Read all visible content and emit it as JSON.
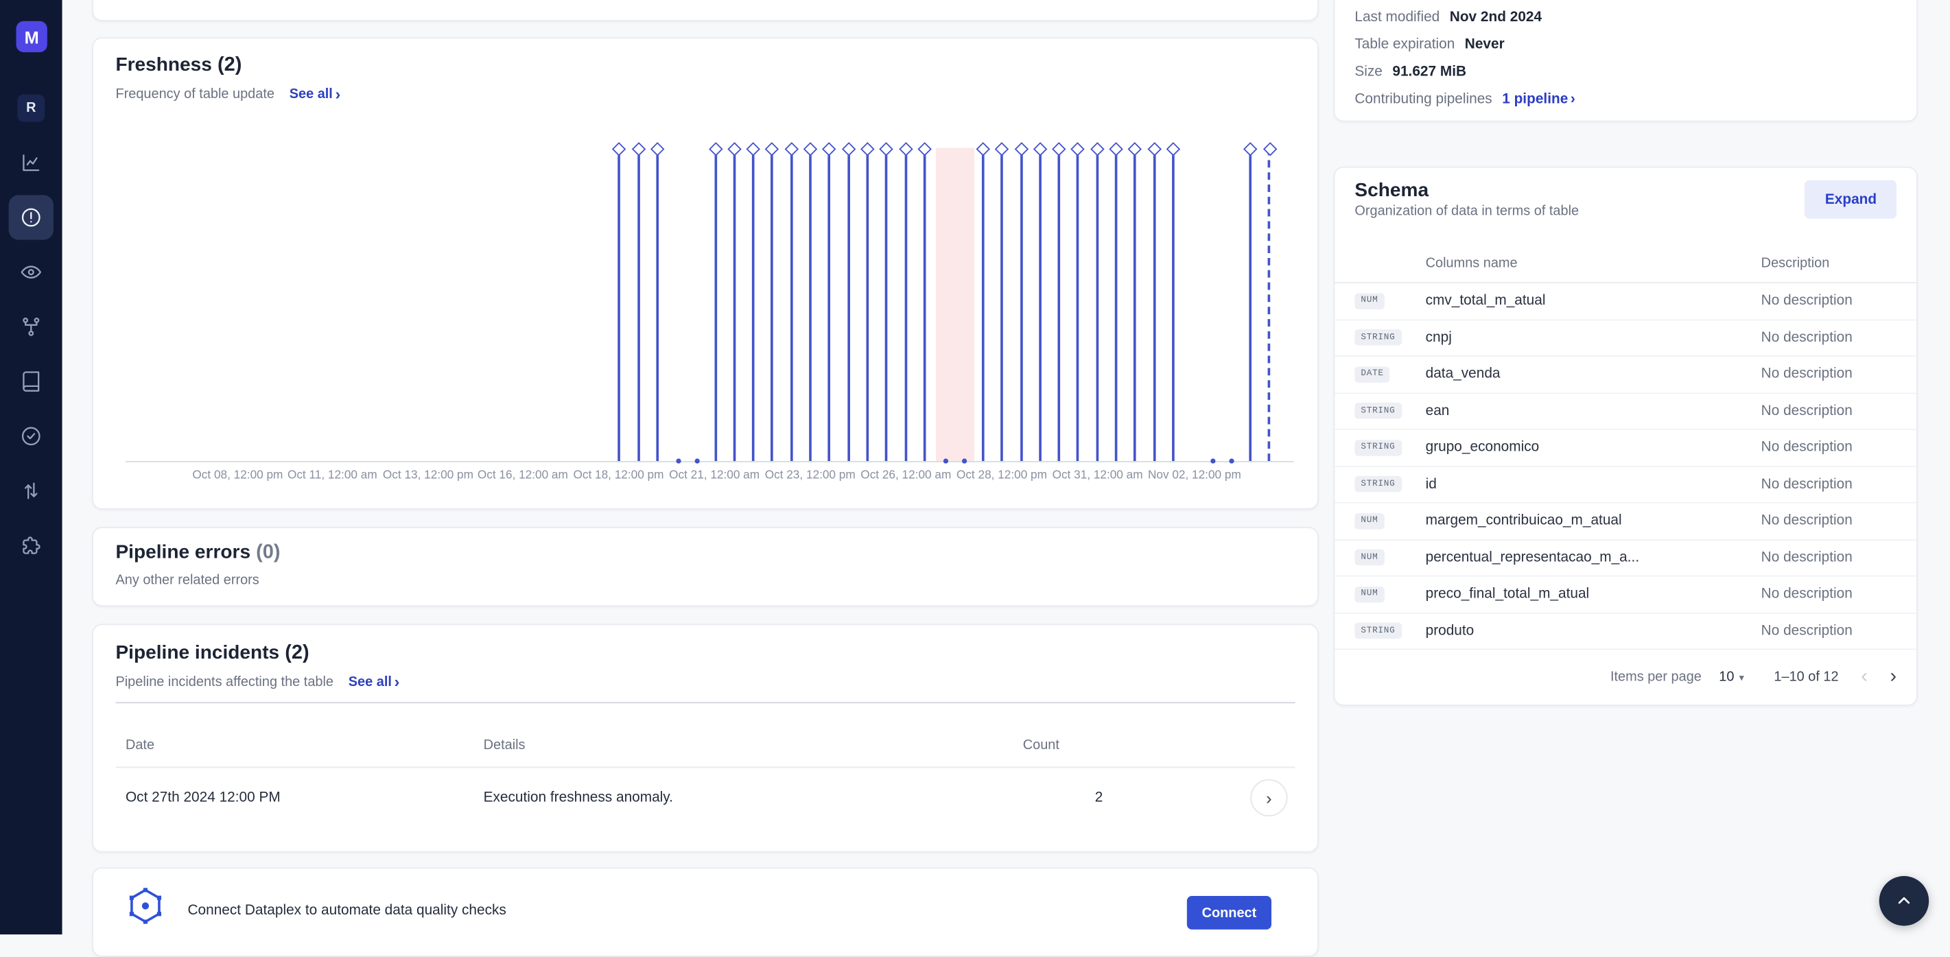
{
  "icons": {
    "chevron_right": "›",
    "chevron_left": "‹",
    "caret_down": "▾"
  },
  "theme": {
    "accent": "#3351d4",
    "link": "#2b3cc0",
    "sidebar_bg": "#0f1833"
  },
  "sidebar": {
    "logo": "M",
    "workspace": "R"
  },
  "freshness_card": {
    "title": "Freshness",
    "count": "(2)",
    "subtitle": "Frequency of table update",
    "see_all": "See all"
  },
  "errors_card": {
    "title": "Pipeline errors",
    "count": "(0)",
    "subtitle": "Any other related errors"
  },
  "incidents_card": {
    "title": "Pipeline incidents",
    "count": "(2)",
    "subtitle": "Pipeline incidents affecting the table",
    "see_all": "See all",
    "columns": [
      "Date",
      "Details",
      "Count"
    ],
    "rows": [
      {
        "date": "Oct 27th 2024 12:00 PM",
        "details": "Execution freshness anomaly.",
        "count": "2"
      }
    ]
  },
  "banner": {
    "text": "Connect Dataplex to automate data quality checks",
    "button": "Connect"
  },
  "info_panel": {
    "rows": [
      {
        "label": "Last modified",
        "value": "Nov 2nd 2024"
      },
      {
        "label": "Table expiration",
        "value": "Never"
      },
      {
        "label": "Size",
        "value": "91.627 MiB"
      },
      {
        "label": "Contributing pipelines",
        "value": "1 pipeline"
      }
    ]
  },
  "schema_card": {
    "title": "Schema",
    "subtitle": "Organization of data in terms of table",
    "expand": "Expand",
    "columns": [
      "Columns name",
      "Description"
    ],
    "rows": [
      {
        "type": "NUM",
        "name": "cmv_total_m_atual",
        "description": "No description"
      },
      {
        "type": "STRING",
        "name": "cnpj",
        "description": "No description"
      },
      {
        "type": "DATE",
        "name": "data_venda",
        "description": "No description"
      },
      {
        "type": "STRING",
        "name": "ean",
        "description": "No description"
      },
      {
        "type": "STRING",
        "name": "grupo_economico",
        "description": "No description"
      },
      {
        "type": "STRING",
        "name": "id",
        "description": "No description"
      },
      {
        "type": "NUM",
        "name": "margem_contribuicao_m_atual",
        "description": "No description"
      },
      {
        "type": "NUM",
        "name": "percentual_representacao_m_a...",
        "description": "No description"
      },
      {
        "type": "NUM",
        "name": "preco_final_total_m_atual",
        "description": "No description"
      },
      {
        "type": "STRING",
        "name": "produto",
        "description": "No description"
      }
    ],
    "pagination": {
      "items_per_page_label": "Items per page",
      "items_per_page": "10",
      "range": "1–10 of 12"
    }
  },
  "chart_data": {
    "type": "event-timeline",
    "title": "Freshness (2)",
    "description": "Table update events every ~12h; gaps with baseline dots mark missed updates; pink band marks freshness anomaly around Oct 26-27; last stem dashed (in progress).",
    "x_ticks": [
      {
        "label": "Oct 08, 12:00 pm",
        "pos": 9.6
      },
      {
        "label": "Oct 11, 12:00 am",
        "pos": 17.7
      },
      {
        "label": "Oct 13, 12:00 pm",
        "pos": 25.9
      },
      {
        "label": "Oct 16, 12:00 am",
        "pos": 34.0
      },
      {
        "label": "Oct 18, 12:00 pm",
        "pos": 42.2
      },
      {
        "label": "Oct 21, 12:00 am",
        "pos": 50.4
      },
      {
        "label": "Oct 23, 12:00 pm",
        "pos": 58.6
      },
      {
        "label": "Oct 26, 12:00 am",
        "pos": 66.8
      },
      {
        "label": "Oct 28, 12:00 pm",
        "pos": 75.0
      },
      {
        "label": "Oct 31, 12:00 am",
        "pos": 83.2
      },
      {
        "label": "Nov 02, 12:00 pm",
        "pos": 91.5
      }
    ],
    "stems": [
      {
        "pos": 42.2,
        "style": "solid"
      },
      {
        "pos": 43.9,
        "style": "solid"
      },
      {
        "pos": 45.5,
        "style": "solid"
      },
      {
        "pos": 50.5,
        "style": "solid"
      },
      {
        "pos": 52.1,
        "style": "solid"
      },
      {
        "pos": 53.7,
        "style": "solid"
      },
      {
        "pos": 55.3,
        "style": "solid"
      },
      {
        "pos": 57.0,
        "style": "solid"
      },
      {
        "pos": 58.6,
        "style": "solid"
      },
      {
        "pos": 60.2,
        "style": "solid"
      },
      {
        "pos": 61.9,
        "style": "solid"
      },
      {
        "pos": 63.5,
        "style": "solid"
      },
      {
        "pos": 65.1,
        "style": "solid"
      },
      {
        "pos": 66.8,
        "style": "solid"
      },
      {
        "pos": 68.4,
        "style": "solid"
      },
      {
        "pos": 73.4,
        "style": "solid"
      },
      {
        "pos": 75.0,
        "style": "solid"
      },
      {
        "pos": 76.7,
        "style": "solid"
      },
      {
        "pos": 78.3,
        "style": "solid"
      },
      {
        "pos": 79.9,
        "style": "solid"
      },
      {
        "pos": 81.5,
        "style": "solid"
      },
      {
        "pos": 83.2,
        "style": "solid"
      },
      {
        "pos": 84.8,
        "style": "solid"
      },
      {
        "pos": 86.4,
        "style": "solid"
      },
      {
        "pos": 88.1,
        "style": "solid"
      },
      {
        "pos": 89.7,
        "style": "solid"
      },
      {
        "pos": 96.3,
        "style": "solid"
      },
      {
        "pos": 97.9,
        "style": "dashed"
      }
    ],
    "baseline_dots": [
      47.3,
      48.9,
      70.2,
      71.8,
      93.1,
      94.7
    ],
    "anomaly_band": {
      "start": 69.4,
      "end": 72.7
    },
    "colors": {
      "stem": "#4353cb",
      "band": "#fce8e8"
    }
  }
}
